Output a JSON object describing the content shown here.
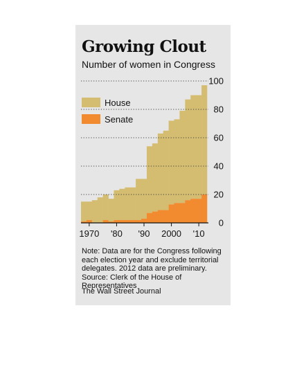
{
  "header": {
    "title": "Growing Clout",
    "subtitle": "Number of women in Congress"
  },
  "footer": {
    "note": "Note: Data are for the Congress following each election year and exclude territorial delegates. 2012 data are preliminary.",
    "source": "Source: Clerk of the House of Representatives",
    "credit": "The Wall Street Journal"
  },
  "colors": {
    "house": "#d4bd70",
    "senate": "#f28a30",
    "background": "#e6e6e6",
    "text": "#111111",
    "grid": "#444444"
  },
  "chart_data": {
    "type": "bar",
    "stacked": true,
    "categories": [
      "1968",
      "1970",
      "1972",
      "1974",
      "1976",
      "1978",
      "1980",
      "1982",
      "1984",
      "1986",
      "1988",
      "1990",
      "1992",
      "1994",
      "1996",
      "1998",
      "2000",
      "2002",
      "2004",
      "2006",
      "2008",
      "2010",
      "2012"
    ],
    "series": [
      {
        "name": "House",
        "values": [
          14,
          13,
          16,
          18,
          18,
          16,
          21,
          22,
          23,
          23,
          29,
          28,
          47,
          48,
          54,
          56,
          59,
          59,
          65,
          71,
          73,
          73,
          77
        ]
      },
      {
        "name": "Senate",
        "values": [
          1,
          2,
          0,
          0,
          2,
          1,
          2,
          2,
          2,
          2,
          2,
          3,
          7,
          8,
          9,
          9,
          13,
          14,
          14,
          16,
          17,
          17,
          20
        ]
      }
    ],
    "x_tick_labels": [
      "1970",
      "'80",
      "'90",
      "2000",
      "'10"
    ],
    "y_ticks": [
      0,
      20,
      40,
      60,
      80,
      100
    ],
    "ylim": [
      0,
      100
    ],
    "xlabel": "",
    "ylabel": "",
    "grid": "dotted horizontal",
    "legend_position": "top-left"
  }
}
